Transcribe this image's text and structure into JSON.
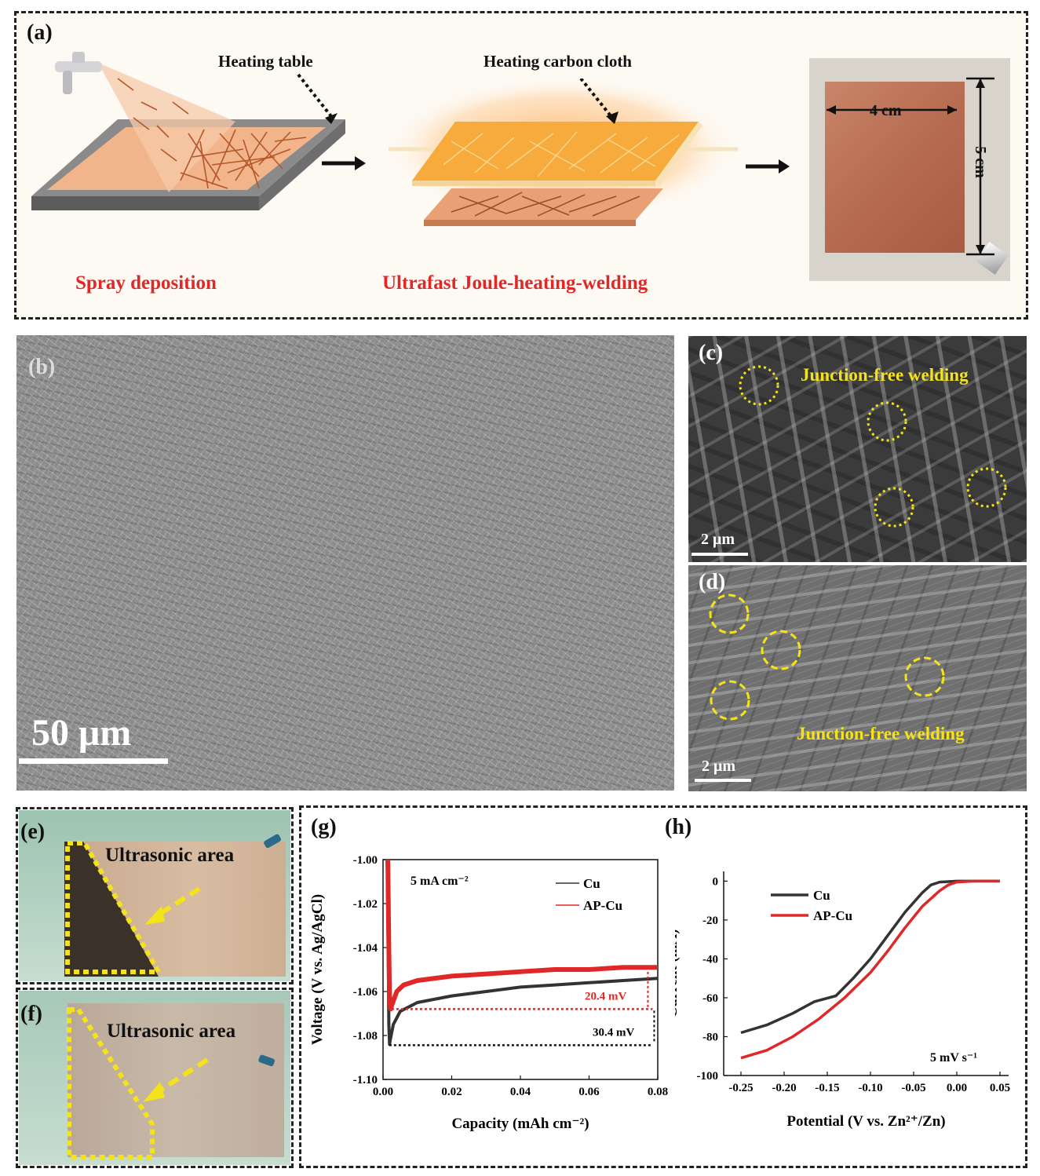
{
  "panel_a": {
    "label": "(a)",
    "heating_table": "Heating table",
    "heating_carbon_cloth": "Heating carbon cloth",
    "spray_deposition": "Spray deposition",
    "joule_heating": "Ultrafast Joule-heating-welding",
    "width_label": "4 cm",
    "height_label": "5 cm",
    "accent_red": "#e02828"
  },
  "panel_b": {
    "label": "(b)",
    "scale": "50 μm"
  },
  "panel_c": {
    "label": "(c)",
    "caption": "Junction-free welding",
    "scale": "2 μm"
  },
  "panel_d": {
    "label": "(d)",
    "caption": "Junction-free welding",
    "scale": "2 μm"
  },
  "panel_e": {
    "label": "(e)",
    "caption": "Ultrasonic area"
  },
  "panel_f": {
    "label": "(f)",
    "caption": "Ultrasonic area"
  },
  "chart_data": [
    {
      "panel": "(g)",
      "type": "line",
      "xlabel": "Capacity (mAh cm⁻²)",
      "ylabel": "Voltage (V vs. Ag/AgCl)",
      "xlim": [
        0,
        0.08
      ],
      "ylim": [
        -1.1,
        -1.0
      ],
      "xticks": [
        "0.00",
        "0.02",
        "0.04",
        "0.06",
        "0.08"
      ],
      "yticks": [
        "-1.00",
        "-1.02",
        "-1.04",
        "-1.06",
        "-1.08",
        "-1.10"
      ],
      "annotation": "5 mA cm⁻²",
      "delta_labels": [
        "20.4 mV",
        "30.4 mV"
      ],
      "series": [
        {
          "name": "Cu",
          "color": "#333333",
          "x": [
            0.0012,
            0.0015,
            0.0017,
            0.0019,
            0.0021,
            0.003,
            0.005,
            0.01,
            0.02,
            0.03,
            0.04,
            0.05,
            0.06,
            0.07,
            0.08
          ],
          "y": [
            -1.0,
            -1.04,
            -1.075,
            -1.084,
            -1.082,
            -1.075,
            -1.069,
            -1.065,
            -1.062,
            -1.06,
            -1.058,
            -1.057,
            -1.056,
            -1.055,
            -1.054
          ]
        },
        {
          "name": "AP-Cu",
          "color": "#e02828",
          "x": [
            0.0014,
            0.0017,
            0.0019,
            0.0022,
            0.0026,
            0.004,
            0.006,
            0.01,
            0.02,
            0.03,
            0.04,
            0.05,
            0.06,
            0.07,
            0.08
          ],
          "y": [
            -1.0,
            -1.04,
            -1.062,
            -1.068,
            -1.066,
            -1.06,
            -1.057,
            -1.055,
            -1.053,
            -1.052,
            -1.051,
            -1.05,
            -1.05,
            -1.049,
            -1.049
          ]
        }
      ]
    },
    {
      "panel": "(h)",
      "type": "line",
      "xlabel": "Potential (V vs. Zn²⁺/Zn)",
      "ylabel": "Current (mA)",
      "xlim": [
        -0.27,
        0.06
      ],
      "ylim": [
        -100,
        5
      ],
      "xticks": [
        "-0.25",
        "-0.20",
        "-0.15",
        "-0.10",
        "-0.05",
        "0.00",
        "0.05"
      ],
      "yticks": [
        "0",
        "-20",
        "-40",
        "-60",
        "-80",
        "-100"
      ],
      "annotation": "5 mV s⁻¹",
      "series": [
        {
          "name": "Cu",
          "color": "#333333",
          "x": [
            -0.25,
            -0.22,
            -0.19,
            -0.165,
            -0.14,
            -0.12,
            -0.1,
            -0.08,
            -0.06,
            -0.04,
            -0.03,
            -0.02,
            0.0,
            0.02,
            0.05
          ],
          "y": [
            -78,
            -74,
            -68,
            -62,
            -59,
            -50,
            -40,
            -28,
            -16,
            -6,
            -2,
            -0.5,
            0,
            0,
            0
          ]
        },
        {
          "name": "AP-Cu",
          "color": "#e02828",
          "x": [
            -0.25,
            -0.22,
            -0.19,
            -0.16,
            -0.13,
            -0.1,
            -0.08,
            -0.06,
            -0.04,
            -0.02,
            -0.01,
            0.0,
            0.02,
            0.05
          ],
          "y": [
            -91,
            -87,
            -80,
            -71,
            -60,
            -47,
            -36,
            -24,
            -13,
            -5,
            -2,
            -0.5,
            0,
            0
          ]
        }
      ]
    }
  ]
}
